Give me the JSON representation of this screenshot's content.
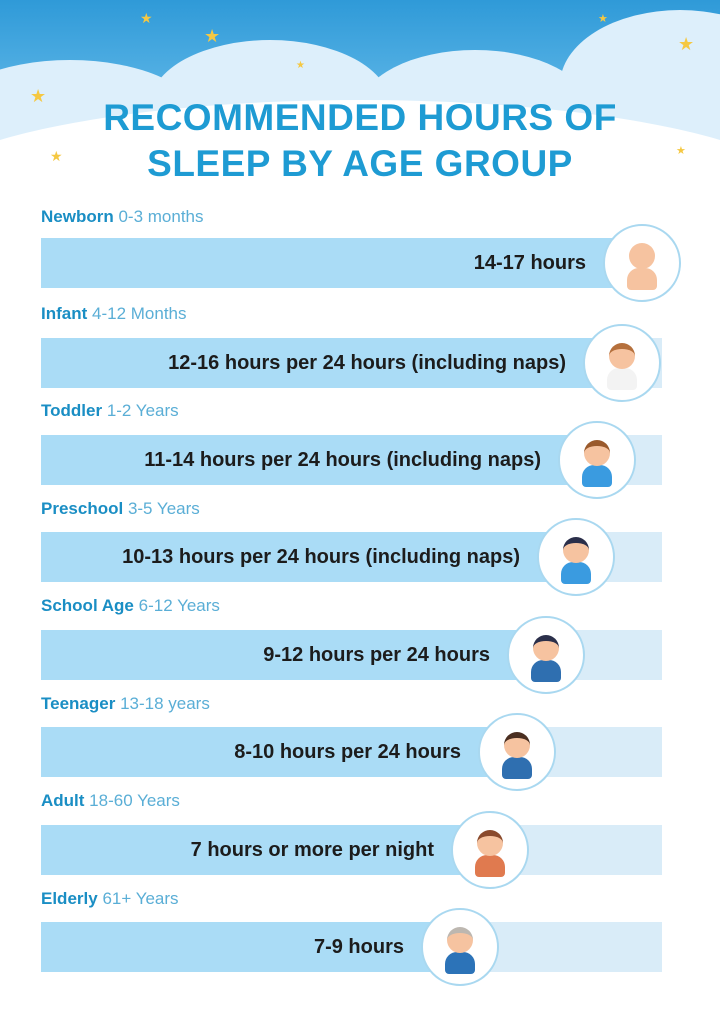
{
  "title": {
    "line1": "RECOMMENDED HOURS OF",
    "line2": "SLEEP BY AGE GROUP"
  },
  "colors": {
    "title": "#1e9bd3",
    "bar": "#aadcf6",
    "track": "#d9ecf8",
    "sky": "#2f9ad8"
  },
  "groups": [
    {
      "name": "Newborn",
      "age": "0-3 months",
      "hours": "14-17 hours",
      "icon": "newborn-baby-icon"
    },
    {
      "name": "Infant",
      "age": "4-12 Months",
      "hours": "12-16 hours per 24 hours (including naps)",
      "icon": "infant-baby-icon"
    },
    {
      "name": "Toddler",
      "age": "1-2 Years",
      "hours": "11-14 hours per 24 hours (including naps)",
      "icon": "toddler-icon"
    },
    {
      "name": "Preschool",
      "age": "3-5 Years",
      "hours": "10-13 hours per 24 hours (including naps)",
      "icon": "preschool-child-icon"
    },
    {
      "name": "School Age",
      "age": "6-12 Years",
      "hours": "9-12 hours per 24 hours",
      "icon": "school-child-icon"
    },
    {
      "name": "Teenager",
      "age": "13-18 years",
      "hours": "8-10 hours per 24 hours",
      "icon": "teenager-icon"
    },
    {
      "name": "Adult",
      "age": "18-60 Years",
      "hours": "7 hours or more per night",
      "icon": "adult-icon"
    },
    {
      "name": "Elderly",
      "age": "61+ Years",
      "hours": "7-9 hours",
      "icon": "elderly-icon"
    }
  ]
}
